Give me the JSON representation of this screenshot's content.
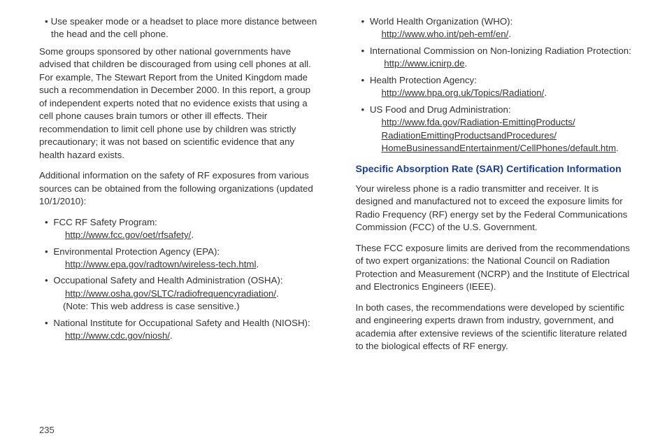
{
  "page_number": "235",
  "left_col": {
    "first_bullet": "Use speaker mode or a headset to place more distance between the head and the cell phone.",
    "para1": "Some groups sponsored by other national governments have advised that children be discouraged from using cell phones at all. For example, The Stewart Report from the United Kingdom made such a recommendation in December 2000. In this report, a group of independent experts noted that no evidence exists that using a cell phone causes brain tumors or other ill effects. Their recommendation to limit cell phone use by children was strictly precautionary; it was not based on scientific evidence that any health hazard exists.",
    "para2": "Additional information on the safety of RF exposures from various sources can be obtained from the following organizations (updated 10/1/2010):",
    "orgs": [
      {
        "label": "FCC RF Safety Program:",
        "url": "http://www.fcc.gov/oet/rfsafety/"
      },
      {
        "label": "Environmental Protection Agency (EPA):",
        "url": "http://www.epa.gov/radtown/wireless-tech.html"
      },
      {
        "label": "Occupational Safety and Health Administration (OSHA):",
        "url": "http://www.osha.gov/SLTC/radiofrequencyradiation/",
        "note": "(Note: This web address is case sensitive.)"
      },
      {
        "label": "National Institute for Occupational Safety and Health (NIOSH):",
        "url": "http://www.cdc.gov/niosh/"
      }
    ]
  },
  "right_col": {
    "orgs": [
      {
        "label": "World Health Organization (WHO):",
        "url": "http://www.who.int/peh-emf/en/"
      },
      {
        "label": "International Commission on Non-Ionizing Radiation Protection:",
        "url": "http://www.icnirp.de"
      },
      {
        "label": "Health Protection Agency:",
        "url": "http://www.hpa.org.uk/Topics/Radiation/"
      },
      {
        "label": "US Food and Drug Administration:",
        "url_lines": [
          "http://www.fda.gov/Radiation-EmittingProducts/",
          "RadiationEmittingProductsandProcedures/",
          "HomeBusinessandEntertainment/CellPhones/default.htm"
        ]
      }
    ],
    "heading": "Specific Absorption Rate (SAR) Certification Information",
    "para1": "Your wireless phone is a radio transmitter and receiver. It is designed and manufactured not to exceed the exposure limits for Radio Frequency (RF) energy set by the Federal Communications Commission (FCC) of the U.S. Government.",
    "para2": "These FCC exposure limits are derived from the recommendations of two expert organizations: the National Council on Radiation Protection and Measurement (NCRP) and the Institute of Electrical and Electronics Engineers (IEEE).",
    "para3": "In both cases, the recommendations were developed by scientific and engineering experts drawn from industry, government, and academia after extensive reviews of the scientific literature related to the biological effects of RF energy."
  },
  "colors": {
    "heading": "#1a3f9a",
    "text": "#333333",
    "background": "#ffffff"
  }
}
